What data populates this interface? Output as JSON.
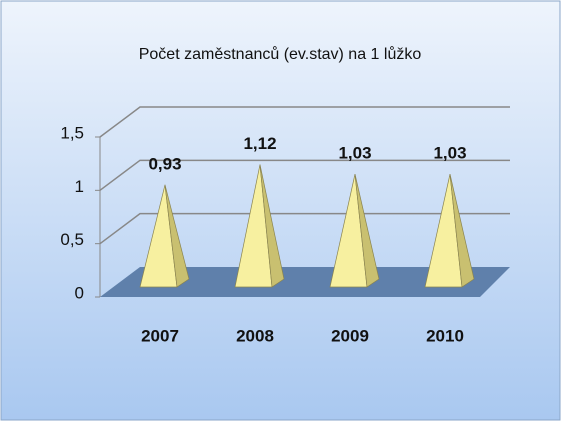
{
  "chart_data": {
    "type": "pyramid",
    "title": "Počet zaměstnanců (ev.stav) na 1 lůžko",
    "categories": [
      "2007",
      "2008",
      "2009",
      "2010"
    ],
    "values": [
      0.93,
      1.12,
      1.03,
      1.03
    ],
    "value_labels": [
      "0,93",
      "1,12",
      "1,03",
      "1,03"
    ],
    "color": "#f7f0a0",
    "ylim": [
      0,
      1.5
    ],
    "yticks": [
      0,
      {
        "value": 0.5,
        "label": "0,5"
      },
      1,
      {
        "value": 1.5,
        "label": "1,5"
      }
    ],
    "grid": true
  }
}
